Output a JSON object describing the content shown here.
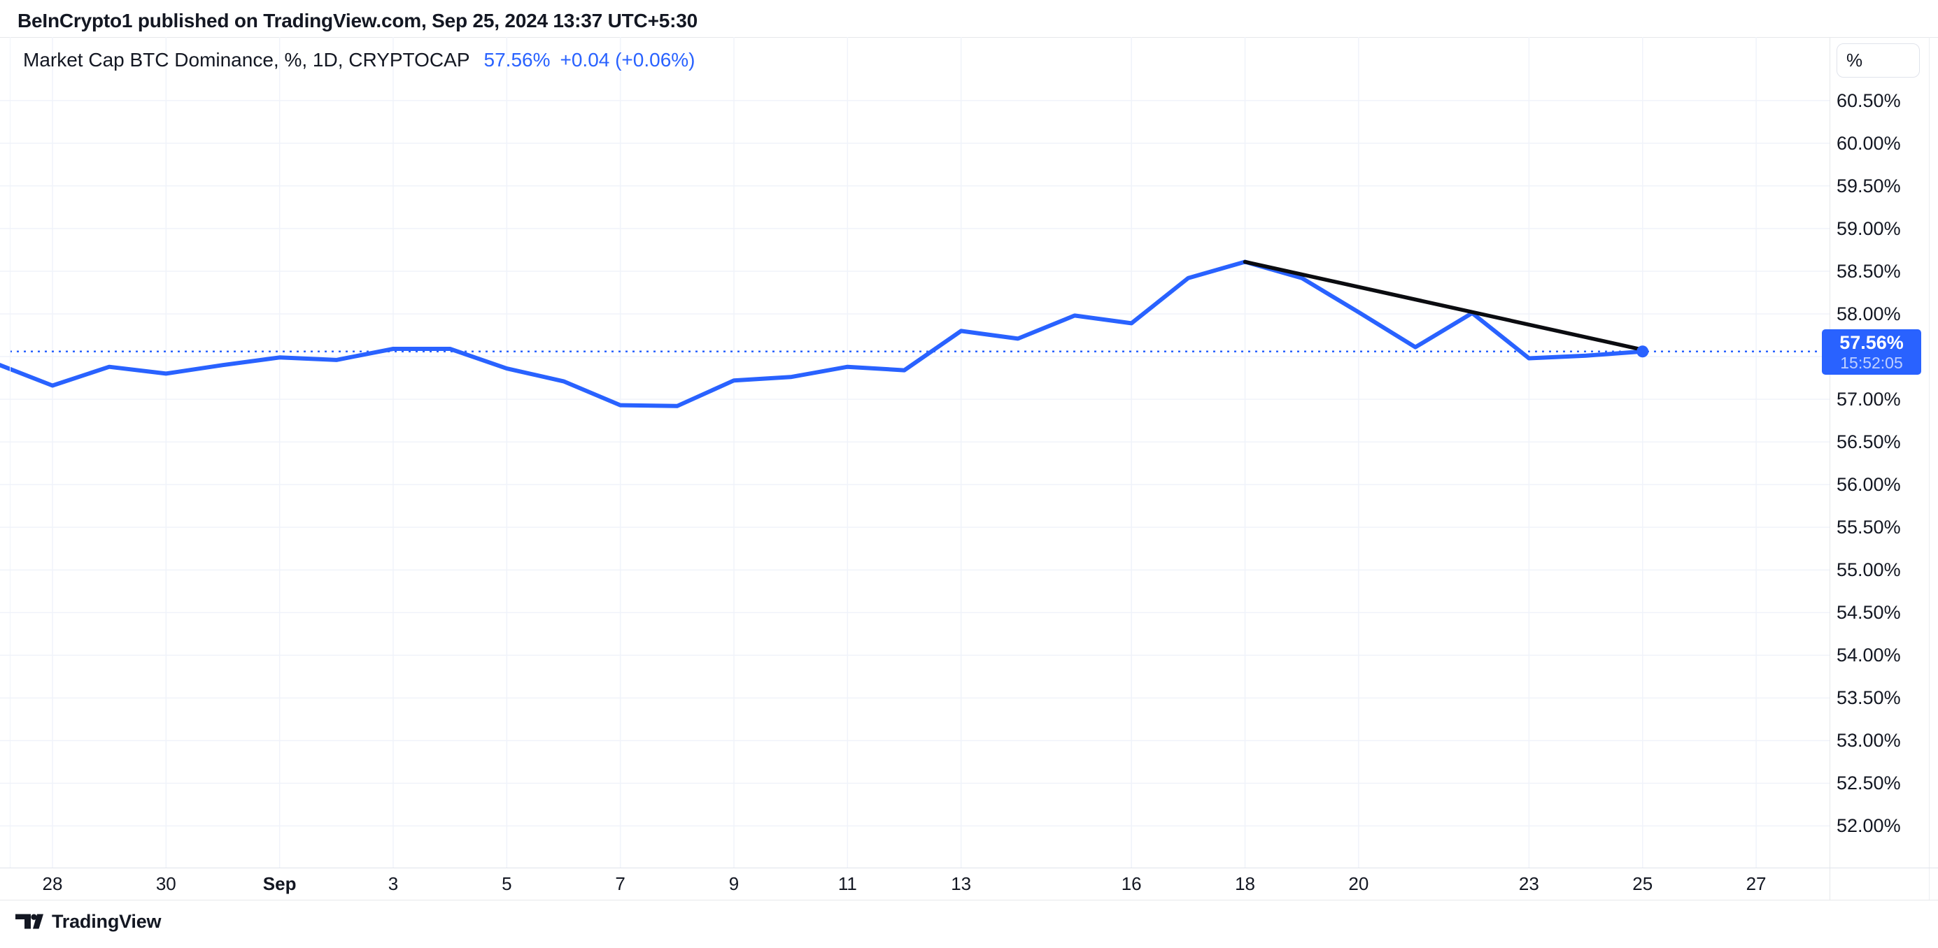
{
  "header": {
    "text": "BeInCrypto1 published on TradingView.com, Sep 25, 2024 13:37 UTC+5:30"
  },
  "legend": {
    "title": "Market Cap BTC Dominance, %, 1D, CRYPTOCAP",
    "value": "57.56%",
    "change": "+0.04 (+0.06%)"
  },
  "price_scale": {
    "unit_button_label": "%"
  },
  "price_label": {
    "value": "57.56%",
    "countdown": "15:52:05"
  },
  "footer": {
    "brand": "TradingView"
  },
  "colors": {
    "accent_blue": "#2962FF",
    "text_dark": "#131722",
    "grid": "#F0F3FA",
    "border": "#E6E8EB",
    "trend_black": "#0B0C10",
    "label_text": "#FFFFFF"
  },
  "chart_data": {
    "type": "line",
    "title": "Market Cap BTC Dominance, %, 1D, CRYPTOCAP",
    "series_name": "Market Cap BTC Dominance %",
    "legend_position": "top-left",
    "grid": true,
    "points": [
      {
        "date": "Aug 27",
        "value": 57.42
      },
      {
        "date": "Aug 28",
        "value": 57.16
      },
      {
        "date": "Aug 29",
        "value": 57.38
      },
      {
        "date": "Aug 30",
        "value": 57.3
      },
      {
        "date": "Aug 31",
        "value": 57.4
      },
      {
        "date": "Sep 1",
        "value": 57.49
      },
      {
        "date": "Sep 2",
        "value": 57.46
      },
      {
        "date": "Sep 3",
        "value": 57.59
      },
      {
        "date": "Sep 4",
        "value": 57.59
      },
      {
        "date": "Sep 5",
        "value": 57.36
      },
      {
        "date": "Sep 6",
        "value": 57.21
      },
      {
        "date": "Sep 7",
        "value": 56.93
      },
      {
        "date": "Sep 8",
        "value": 56.92
      },
      {
        "date": "Sep 9",
        "value": 57.22
      },
      {
        "date": "Sep 10",
        "value": 57.26
      },
      {
        "date": "Sep 11",
        "value": 57.38
      },
      {
        "date": "Sep 12",
        "value": 57.34
      },
      {
        "date": "Sep 13",
        "value": 57.8
      },
      {
        "date": "Sep 14",
        "value": 57.71
      },
      {
        "date": "Sep 15",
        "value": 57.98
      },
      {
        "date": "Sep 16",
        "value": 57.89
      },
      {
        "date": "Sep 17",
        "value": 58.42
      },
      {
        "date": "Sep 18",
        "value": 58.61
      },
      {
        "date": "Sep 19",
        "value": 58.42
      },
      {
        "date": "Sep 20",
        "value": 58.02
      },
      {
        "date": "Sep 21",
        "value": 57.61
      },
      {
        "date": "Sep 22",
        "value": 58.01
      },
      {
        "date": "Sep 23",
        "value": 57.48
      },
      {
        "date": "Sep 24",
        "value": 57.51
      },
      {
        "date": "Sep 25",
        "value": 57.56
      }
    ],
    "current": {
      "value": 57.56,
      "display": "57.56%",
      "countdown": "15:52:05",
      "change": "+0.04 (+0.06%)"
    },
    "trend_line": {
      "from_date": "Sep 18",
      "from_value": 58.61,
      "to_date": "Sep 25",
      "to_value": 57.58
    },
    "y_axis": {
      "unit": "%",
      "tick_min": 52.0,
      "tick_max": 60.5,
      "tick_step": 0.5,
      "range_top": 61.25,
      "range_bottom": 51.51
    },
    "x_axis": {
      "ticks": [
        {
          "label": "28",
          "day": 1,
          "bold": false
        },
        {
          "label": "30",
          "day": 3,
          "bold": false
        },
        {
          "label": "Sep",
          "day": 5,
          "bold": true
        },
        {
          "label": "3",
          "day": 7,
          "bold": false
        },
        {
          "label": "5",
          "day": 9,
          "bold": false
        },
        {
          "label": "7",
          "day": 11,
          "bold": false
        },
        {
          "label": "9",
          "day": 13,
          "bold": false
        },
        {
          "label": "11",
          "day": 15,
          "bold": false
        },
        {
          "label": "13",
          "day": 17,
          "bold": false
        },
        {
          "label": "16",
          "day": 20,
          "bold": false
        },
        {
          "label": "18",
          "day": 22,
          "bold": false
        },
        {
          "label": "20",
          "day": 24,
          "bold": false
        },
        {
          "label": "23",
          "day": 27,
          "bold": false
        },
        {
          "label": "25",
          "day": 29,
          "bold": false
        },
        {
          "label": "27",
          "day": 31,
          "bold": false
        }
      ]
    }
  }
}
